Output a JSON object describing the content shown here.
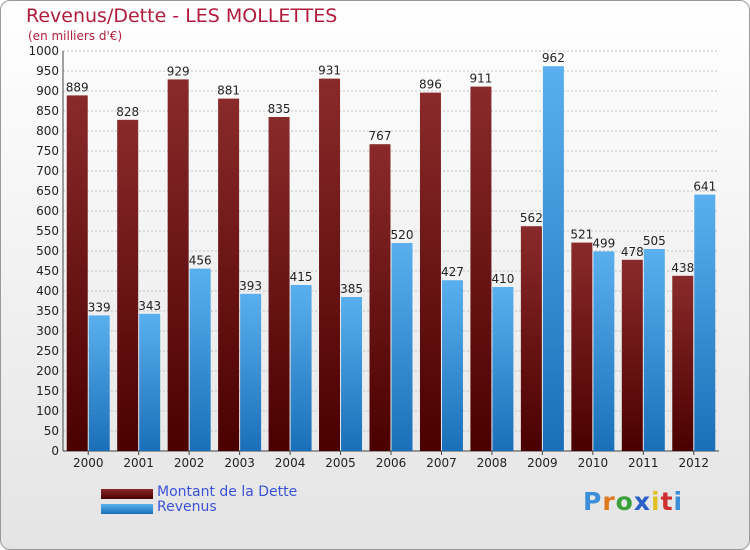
{
  "title": "Revenus/Dette - LES MOLLETTES",
  "subtitle": "(en milliers d'€)",
  "logo_text": "Proxiti",
  "colors": {
    "dette_dark": "#4a0000",
    "dette_light": "#8a2a2a",
    "revenus_dark": "#1a6fb8",
    "revenus_light": "#5ab0ee",
    "title": "#b01c3c",
    "legend_text": "#3a52d8"
  },
  "chart_data": {
    "type": "bar",
    "title": "Revenus/Dette - LES MOLLETTES",
    "subtitle": "(en milliers d'€)",
    "categories": [
      "2000",
      "2001",
      "2002",
      "2003",
      "2004",
      "2005",
      "2006",
      "2007",
      "2008",
      "2009",
      "2010",
      "2011",
      "2012"
    ],
    "series": [
      {
        "name": "Montant de la Dette",
        "values": [
          889,
          828,
          929,
          881,
          835,
          931,
          767,
          896,
          911,
          562,
          521,
          478,
          438
        ]
      },
      {
        "name": "Revenus",
        "values": [
          339,
          343,
          456,
          393,
          415,
          385,
          520,
          427,
          410,
          962,
          499,
          505,
          641
        ]
      }
    ],
    "ylim": [
      0,
      1000
    ],
    "ytick_step": 50,
    "grid": true,
    "legend_position": "bottom-left"
  }
}
